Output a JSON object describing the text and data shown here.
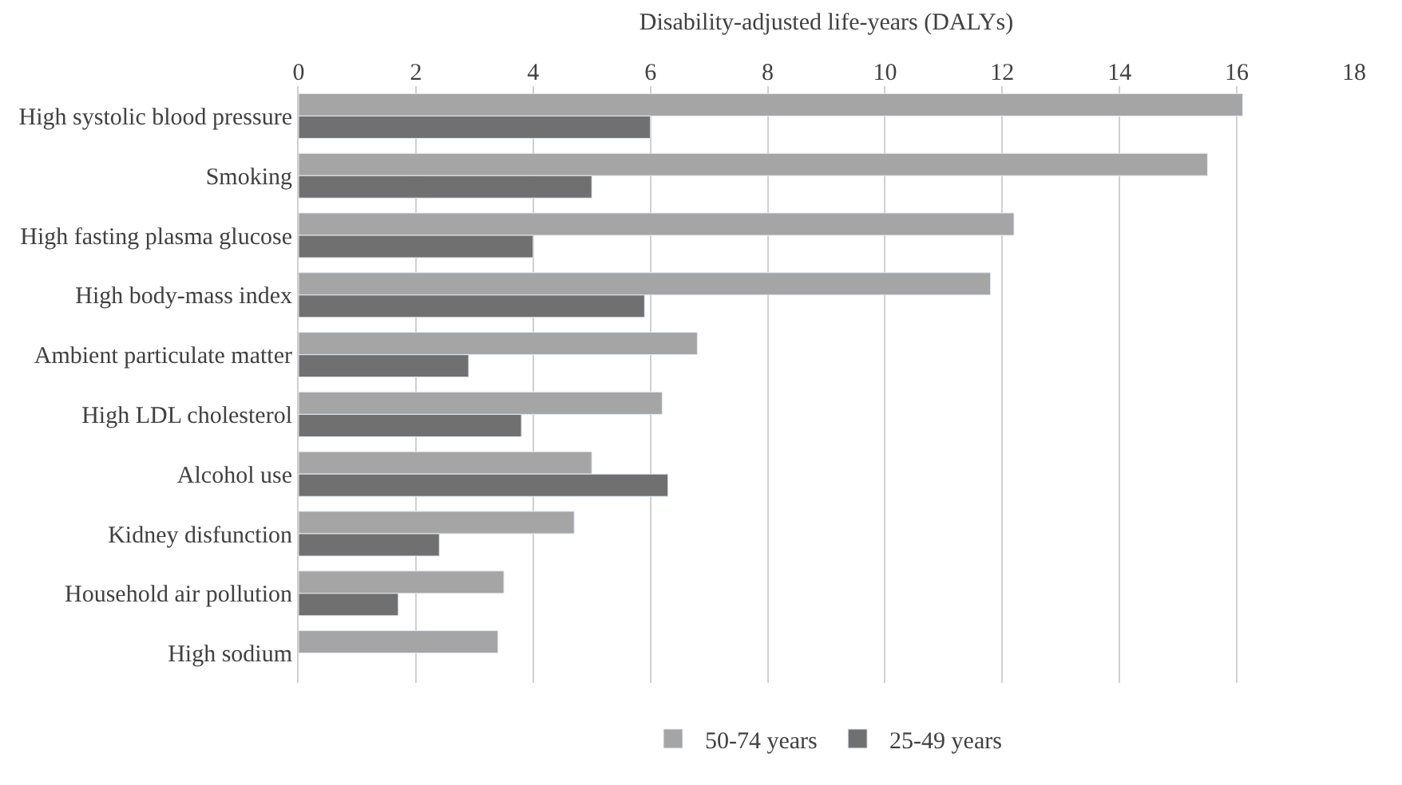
{
  "chart_data": {
    "type": "bar",
    "orientation": "horizontal",
    "xlabel": "Disability-adjusted life-years (DALYs)",
    "categories": [
      "High systolic blood pressure",
      "Smoking",
      "High fasting plasma glucose",
      "High body-mass index",
      "Ambient particulate matter",
      "High LDL cholesterol",
      "Alcohol use",
      "Kidney disfunction",
      "Household air pollution",
      "High sodium"
    ],
    "series": [
      {
        "name": "50-74 years",
        "color": "#a5a5a5",
        "values": [
          16.1,
          15.5,
          12.2,
          11.8,
          6.8,
          6.2,
          5.0,
          4.7,
          3.5,
          3.4
        ]
      },
      {
        "name": "25-49 years",
        "color": "#707070",
        "values": [
          6.0,
          5.0,
          4.0,
          5.9,
          2.9,
          3.8,
          6.3,
          2.4,
          1.7,
          null
        ]
      }
    ],
    "xlim": [
      0,
      18
    ],
    "xticks": [
      0,
      2,
      4,
      6,
      8,
      10,
      12,
      14,
      16,
      18
    ],
    "grid": "x",
    "legend": "bottom"
  }
}
